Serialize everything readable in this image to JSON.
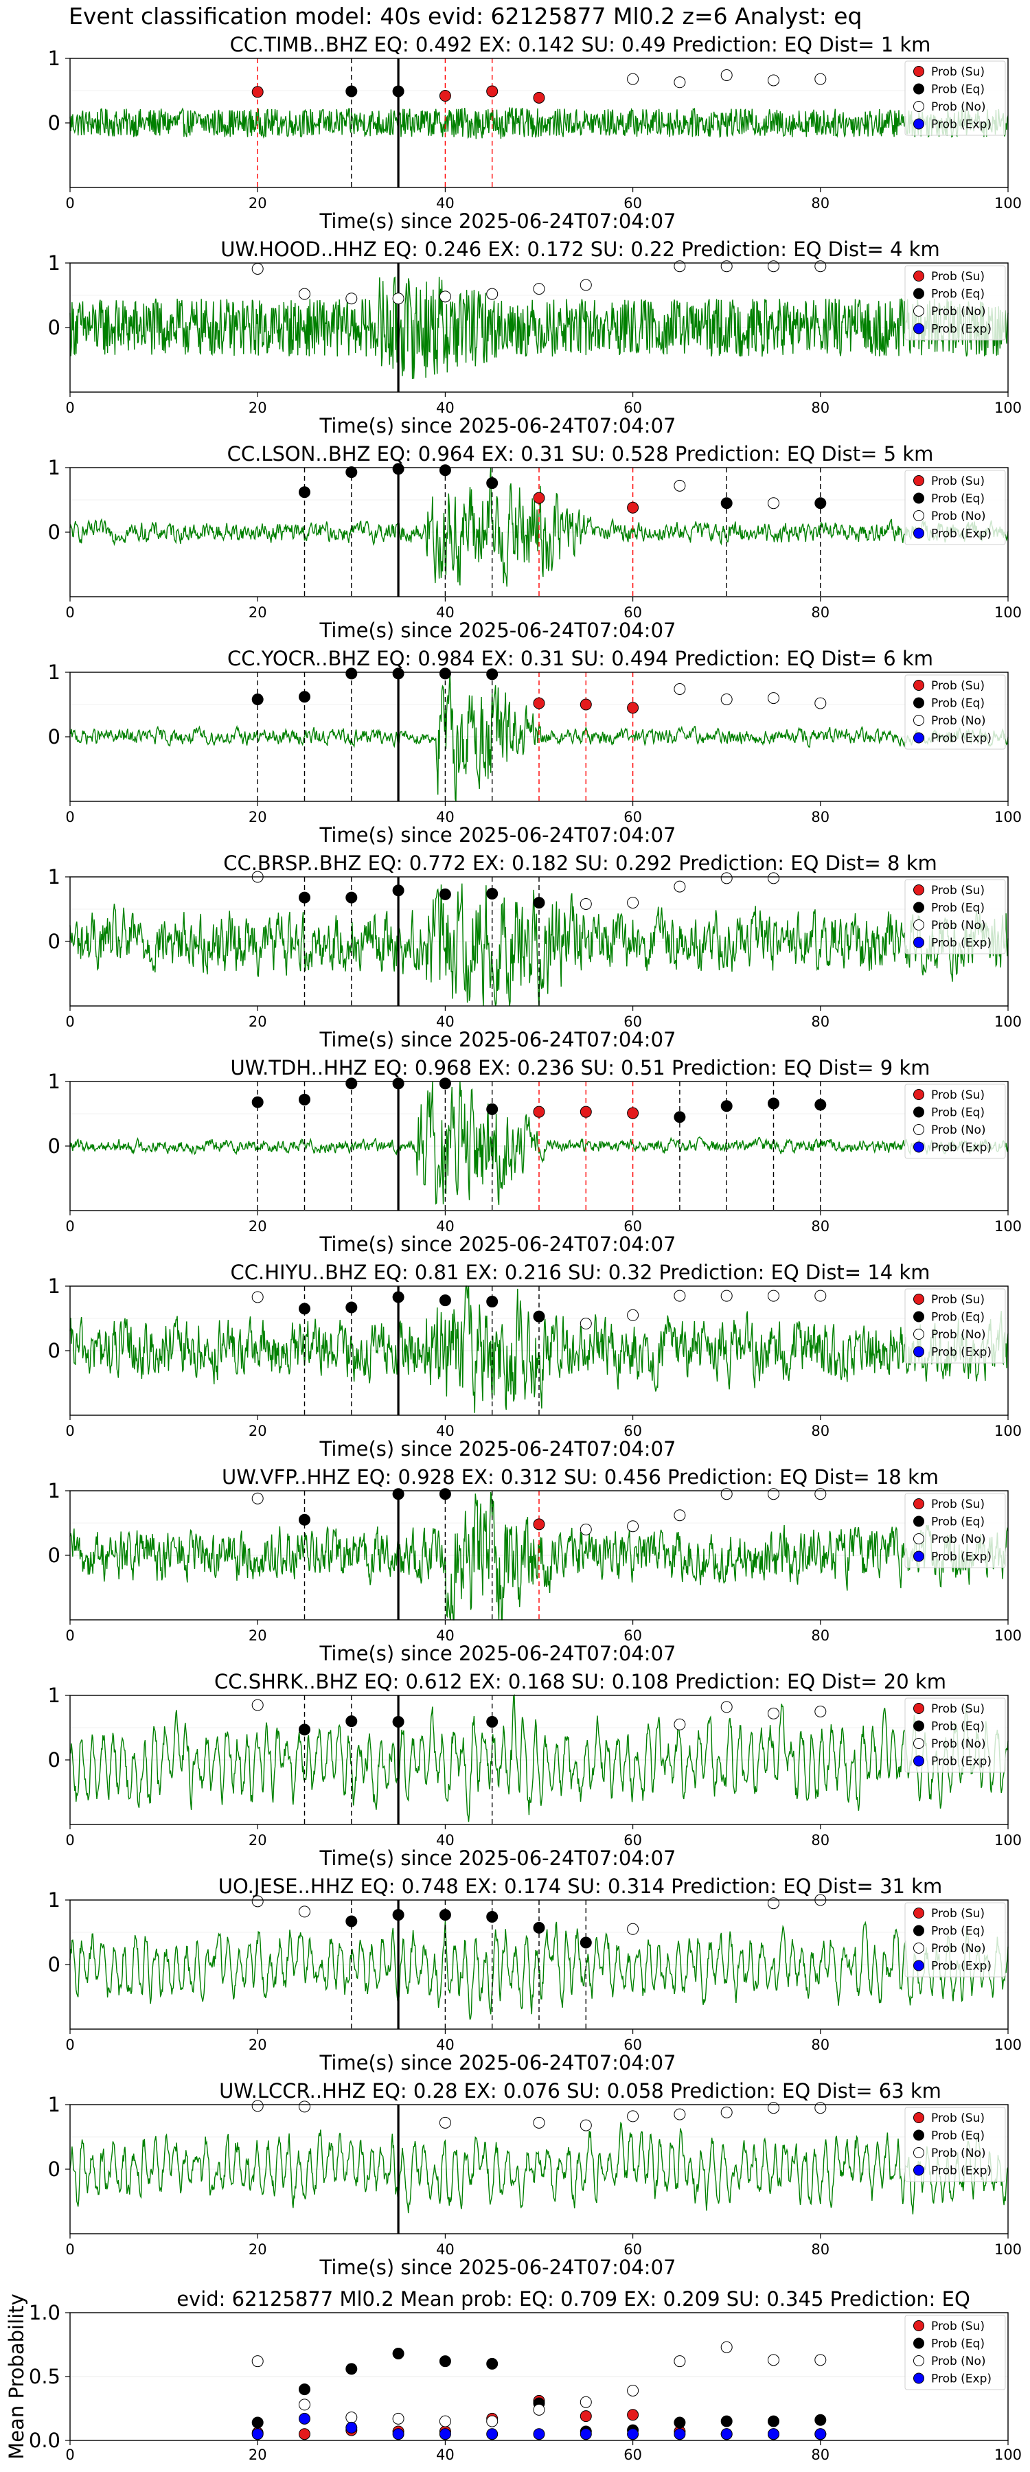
{
  "figure_title": "Event classification model: 40s evid: 62125877 Ml0.2 z=6 Analyst: eq",
  "legend_labels": [
    "Prob (Su)",
    "Prob (Eq)",
    "Prob (No)",
    "Prob (Exp)"
  ],
  "colors": {
    "waveform": "#008000",
    "su": "#e41a1c",
    "eq": "#000000",
    "no": "#ffffff",
    "exp": "#0000ff",
    "su_line": "#ff0000",
    "eq_line": "#000000"
  },
  "chart_data": [
    {
      "type": "line",
      "title": "CC.TIMB..BHZ   EQ: 0.492  EX: 0.142  SU: 0.49   Prediction: EQ    Dist= 1 km",
      "xlabel": "Time(s) since 2025-06-24T07:04:07",
      "xlim": [
        0,
        100
      ],
      "xticks": [
        0,
        20,
        40,
        60,
        80,
        100
      ],
      "yticks": [
        0,
        1
      ],
      "ylim": [
        -1,
        1
      ],
      "origin_line_x": 35,
      "series": [
        {
          "name": "Prob (Su)",
          "x": [
            20,
            40,
            45,
            50
          ],
          "y": [
            0.48,
            0.42,
            0.49,
            0.39
          ]
        },
        {
          "name": "Prob (Eq)",
          "x": [
            30,
            35
          ],
          "y": [
            0.49,
            0.49
          ]
        },
        {
          "name": "Prob (No)",
          "x": [
            60,
            65,
            70,
            75,
            80
          ],
          "y": [
            0.68,
            0.63,
            0.74,
            0.66,
            0.68
          ]
        },
        {
          "name": "Prob (Exp)",
          "x": [],
          "y": []
        }
      ],
      "vlines_su": [
        20,
        40,
        45
      ],
      "vlines_eq": [
        30
      ],
      "waveform_amp": 0.22,
      "waveform_style": "noise",
      "burst": [
        40,
        45,
        0.25
      ]
    },
    {
      "type": "line",
      "title": "UW.HOOD..HHZ   EQ: 0.246  EX: 0.172  SU: 0.22   Prediction: EQ    Dist= 4 km",
      "xlabel": "Time(s) since 2025-06-24T07:04:07",
      "xlim": [
        0,
        100
      ],
      "xticks": [
        0,
        20,
        40,
        60,
        80,
        100
      ],
      "yticks": [
        0,
        1
      ],
      "ylim": [
        -1,
        1
      ],
      "origin_line_x": 35,
      "series": [
        {
          "name": "Prob (Su)",
          "x": [],
          "y": []
        },
        {
          "name": "Prob (Eq)",
          "x": [],
          "y": []
        },
        {
          "name": "Prob (No)",
          "x": [
            20,
            25,
            30,
            35,
            40,
            45,
            50,
            55,
            65,
            70,
            75,
            80
          ],
          "y": [
            0.91,
            0.52,
            0.45,
            0.45,
            0.48,
            0.52,
            0.6,
            0.66,
            0.95,
            0.95,
            0.95,
            0.95
          ]
        },
        {
          "name": "Prob (Exp)",
          "x": [],
          "y": []
        }
      ],
      "vlines_su": [],
      "vlines_eq": [],
      "waveform_amp": 0.45,
      "waveform_style": "noise",
      "burst": [
        33,
        40,
        0.8
      ]
    },
    {
      "type": "line",
      "title": "CC.LSON..BHZ   EQ: 0.964  EX: 0.31  SU: 0.528   Prediction: EQ    Dist= 5 km",
      "xlabel": "Time(s) since 2025-06-24T07:04:07",
      "xlim": [
        0,
        100
      ],
      "xticks": [
        0,
        20,
        40,
        60,
        80,
        100
      ],
      "yticks": [
        0,
        1
      ],
      "ylim": [
        -1,
        1
      ],
      "origin_line_x": 35,
      "series": [
        {
          "name": "Prob (Su)",
          "x": [
            50,
            60
          ],
          "y": [
            0.53,
            0.38
          ]
        },
        {
          "name": "Prob (Eq)",
          "x": [
            25,
            30,
            35,
            40,
            45,
            70,
            80
          ],
          "y": [
            0.62,
            0.93,
            0.98,
            0.96,
            0.76,
            0.45,
            0.45
          ]
        },
        {
          "name": "Prob (No)",
          "x": [
            65,
            75
          ],
          "y": [
            0.72,
            0.45
          ]
        },
        {
          "name": "Prob (Exp)",
          "x": [],
          "y": []
        }
      ],
      "vlines_su": [
        50,
        60
      ],
      "vlines_eq": [
        25,
        30,
        40,
        45,
        70,
        80
      ],
      "waveform_amp": 0.15,
      "waveform_style": "smooth",
      "burst": [
        38,
        50,
        0.8
      ]
    },
    {
      "type": "line",
      "title": "CC.YOCR..BHZ   EQ: 0.984  EX: 0.31  SU: 0.494   Prediction: EQ    Dist= 6 km",
      "xlabel": "Time(s) since 2025-06-24T07:04:07",
      "xlim": [
        0,
        100
      ],
      "xticks": [
        0,
        20,
        40,
        60,
        80,
        100
      ],
      "yticks": [
        0,
        1
      ],
      "ylim": [
        -1,
        1
      ],
      "origin_line_x": 35,
      "series": [
        {
          "name": "Prob (Su)",
          "x": [
            50,
            55,
            60
          ],
          "y": [
            0.52,
            0.5,
            0.45
          ]
        },
        {
          "name": "Prob (Eq)",
          "x": [
            20,
            25,
            30,
            35,
            40,
            45
          ],
          "y": [
            0.58,
            0.62,
            0.98,
            0.98,
            0.98,
            0.97
          ]
        },
        {
          "name": "Prob (No)",
          "x": [
            65,
            70,
            75,
            80
          ],
          "y": [
            0.74,
            0.58,
            0.6,
            0.52
          ]
        },
        {
          "name": "Prob (Exp)",
          "x": [],
          "y": []
        }
      ],
      "vlines_su": [
        50,
        55,
        60
      ],
      "vlines_eq": [
        20,
        25,
        30,
        40,
        45
      ],
      "waveform_amp": 0.12,
      "waveform_style": "smooth",
      "burst": [
        39,
        45,
        0.85
      ]
    },
    {
      "type": "line",
      "title": "CC.BRSP..BHZ   EQ: 0.772  EX: 0.182  SU: 0.292   Prediction: EQ    Dist= 8 km",
      "xlabel": "Time(s) since 2025-06-24T07:04:07",
      "xlim": [
        0,
        100
      ],
      "xticks": [
        0,
        20,
        40,
        60,
        80,
        100
      ],
      "yticks": [
        0,
        1
      ],
      "ylim": [
        -1,
        1
      ],
      "origin_line_x": 35,
      "series": [
        {
          "name": "Prob (Su)",
          "x": [],
          "y": []
        },
        {
          "name": "Prob (Eq)",
          "x": [
            25,
            30,
            35,
            40,
            45,
            50
          ],
          "y": [
            0.68,
            0.68,
            0.79,
            0.73,
            0.74,
            0.6
          ]
        },
        {
          "name": "Prob (No)",
          "x": [
            20,
            55,
            60,
            65,
            70,
            75
          ],
          "y": [
            1.0,
            0.58,
            0.6,
            0.85,
            0.98,
            0.98
          ]
        },
        {
          "name": "Prob (Exp)",
          "x": [],
          "y": []
        }
      ],
      "vlines_su": [],
      "vlines_eq": [
        25,
        30,
        45,
        50
      ],
      "waveform_amp": 0.45,
      "waveform_style": "smooth",
      "burst": [
        38,
        50,
        0.9
      ]
    },
    {
      "type": "line",
      "title": "UW.TDH..HHZ   EQ: 0.968  EX: 0.236  SU: 0.51   Prediction: EQ    Dist= 9 km",
      "xlabel": "Time(s) since 2025-06-24T07:04:07",
      "xlim": [
        0,
        100
      ],
      "xticks": [
        0,
        20,
        40,
        60,
        80,
        100
      ],
      "yticks": [
        0,
        1
      ],
      "ylim": [
        -1,
        1
      ],
      "origin_line_x": 35,
      "series": [
        {
          "name": "Prob (Su)",
          "x": [
            50,
            55,
            60
          ],
          "y": [
            0.53,
            0.53,
            0.51
          ]
        },
        {
          "name": "Prob (Eq)",
          "x": [
            20,
            25,
            30,
            35,
            40,
            45,
            65,
            70,
            75,
            80
          ],
          "y": [
            0.68,
            0.72,
            0.97,
            0.97,
            0.97,
            0.57,
            0.45,
            0.62,
            0.66,
            0.64
          ]
        },
        {
          "name": "Prob (No)",
          "x": [],
          "y": []
        },
        {
          "name": "Prob (Exp)",
          "x": [],
          "y": []
        }
      ],
      "vlines_su": [
        50,
        55,
        60
      ],
      "vlines_eq": [
        20,
        25,
        30,
        40,
        45,
        65,
        70,
        75,
        80
      ],
      "waveform_amp": 0.1,
      "waveform_style": "smooth",
      "burst": [
        37,
        45,
        0.9
      ]
    },
    {
      "type": "line",
      "title": "CC.HIYU..BHZ   EQ: 0.81  EX: 0.216  SU: 0.32   Prediction: EQ    Dist= 14 km",
      "xlabel": "Time(s) since 2025-06-24T07:04:07",
      "xlim": [
        0,
        100
      ],
      "xticks": [
        0,
        20,
        40,
        60,
        80,
        100
      ],
      "yticks": [
        0,
        1
      ],
      "ylim": [
        -1,
        1
      ],
      "origin_line_x": 35,
      "series": [
        {
          "name": "Prob (Su)",
          "x": [],
          "y": []
        },
        {
          "name": "Prob (Eq)",
          "x": [
            25,
            30,
            35,
            40,
            45,
            50
          ],
          "y": [
            0.65,
            0.67,
            0.83,
            0.78,
            0.76,
            0.53
          ]
        },
        {
          "name": "Prob (No)",
          "x": [
            20,
            55,
            60,
            65,
            70,
            75,
            80
          ],
          "y": [
            0.83,
            0.42,
            0.55,
            0.85,
            0.85,
            0.85,
            0.85
          ]
        },
        {
          "name": "Prob (Exp)",
          "x": [],
          "y": []
        }
      ],
      "vlines_su": [],
      "vlines_eq": [
        25,
        30,
        45,
        50
      ],
      "waveform_amp": 0.45,
      "waveform_style": "smooth",
      "burst": [
        38,
        48,
        0.85
      ]
    },
    {
      "type": "line",
      "title": "UW.VFP..HHZ   EQ: 0.928  EX: 0.312  SU: 0.456   Prediction: EQ    Dist= 18 km",
      "xlabel": "Time(s) since 2025-06-24T07:04:07",
      "xlim": [
        0,
        100
      ],
      "xticks": [
        0,
        20,
        40,
        60,
        80,
        100
      ],
      "yticks": [
        0,
        1
      ],
      "ylim": [
        -1,
        1
      ],
      "origin_line_x": 35,
      "series": [
        {
          "name": "Prob (Su)",
          "x": [
            50
          ],
          "y": [
            0.48
          ]
        },
        {
          "name": "Prob (Eq)",
          "x": [
            25,
            35,
            40
          ],
          "y": [
            0.55,
            0.95,
            0.95
          ]
        },
        {
          "name": "Prob (No)",
          "x": [
            20,
            55,
            60,
            65,
            70,
            75,
            80
          ],
          "y": [
            0.88,
            0.4,
            0.45,
            0.62,
            0.95,
            0.95,
            0.95
          ]
        },
        {
          "name": "Prob (Exp)",
          "x": [],
          "y": []
        }
      ],
      "vlines_su": [
        50
      ],
      "vlines_eq": [
        25,
        40,
        45
      ],
      "waveform_amp": 0.4,
      "waveform_style": "smooth",
      "burst": [
        40,
        46,
        1.0
      ]
    },
    {
      "type": "line",
      "title": "CC.SHRK..BHZ   EQ: 0.612  EX: 0.168  SU: 0.108   Prediction: EQ    Dist= 20 km",
      "xlabel": "Time(s) since 2025-06-24T07:04:07",
      "xlim": [
        0,
        100
      ],
      "xticks": [
        0,
        20,
        40,
        60,
        80,
        100
      ],
      "yticks": [
        0,
        1
      ],
      "ylim": [
        -1,
        1
      ],
      "origin_line_x": 35,
      "series": [
        {
          "name": "Prob (Su)",
          "x": [],
          "y": []
        },
        {
          "name": "Prob (Eq)",
          "x": [
            25,
            30,
            35,
            45
          ],
          "y": [
            0.47,
            0.6,
            0.59,
            0.59
          ]
        },
        {
          "name": "Prob (No)",
          "x": [
            20,
            65,
            70,
            75,
            80
          ],
          "y": [
            0.85,
            0.55,
            0.82,
            0.72,
            0.75
          ]
        },
        {
          "name": "Prob (Exp)",
          "x": [],
          "y": []
        }
      ],
      "vlines_su": [],
      "vlines_eq": [
        25,
        30,
        45
      ],
      "waveform_amp": 0.6,
      "waveform_style": "swell",
      "burst": [
        40,
        48,
        0.7
      ]
    },
    {
      "type": "line",
      "title": "UO.JESE..HHZ   EQ: 0.748  EX: 0.174  SU: 0.314   Prediction: EQ    Dist= 31 km",
      "xlabel": "Time(s) since 2025-06-24T07:04:07",
      "xlim": [
        0,
        100
      ],
      "xticks": [
        0,
        20,
        40,
        60,
        80,
        100
      ],
      "yticks": [
        0,
        1
      ],
      "ylim": [
        -1,
        1
      ],
      "origin_line_x": 35,
      "series": [
        {
          "name": "Prob (Su)",
          "x": [],
          "y": []
        },
        {
          "name": "Prob (Eq)",
          "x": [
            30,
            35,
            40,
            45,
            50,
            55
          ],
          "y": [
            0.67,
            0.77,
            0.77,
            0.74,
            0.57,
            0.34
          ]
        },
        {
          "name": "Prob (No)",
          "x": [
            20,
            25,
            60,
            75,
            80
          ],
          "y": [
            0.98,
            0.82,
            0.55,
            0.95,
            1.0
          ]
        },
        {
          "name": "Prob (Exp)",
          "x": [],
          "y": []
        }
      ],
      "vlines_su": [],
      "vlines_eq": [
        30,
        40,
        45,
        50,
        55
      ],
      "waveform_amp": 0.5,
      "waveform_style": "swell",
      "burst": [
        40,
        50,
        0.6
      ]
    },
    {
      "type": "line",
      "title": "UW.LCCR..HHZ   EQ: 0.28  EX: 0.076  SU: 0.058   Prediction: EQ    Dist= 63 km",
      "xlabel": "Time(s) since 2025-06-24T07:04:07",
      "xlim": [
        0,
        100
      ],
      "xticks": [
        0,
        20,
        40,
        60,
        80,
        100
      ],
      "yticks": [
        0,
        1
      ],
      "ylim": [
        -1,
        1
      ],
      "origin_line_x": 35,
      "series": [
        {
          "name": "Prob (Su)",
          "x": [],
          "y": []
        },
        {
          "name": "Prob (Eq)",
          "x": [],
          "y": []
        },
        {
          "name": "Prob (No)",
          "x": [
            20,
            25,
            40,
            50,
            55,
            60,
            65,
            70,
            75,
            80
          ],
          "y": [
            0.98,
            0.97,
            0.72,
            0.72,
            0.68,
            0.82,
            0.85,
            0.88,
            0.95,
            0.95
          ]
        },
        {
          "name": "Prob (Exp)",
          "x": [],
          "y": []
        }
      ],
      "vlines_su": [],
      "vlines_eq": [],
      "waveform_amp": 0.5,
      "waveform_style": "swell",
      "burst": [
        38,
        45,
        0.5
      ]
    },
    {
      "type": "scatter",
      "title": "evid: 62125877  Ml0.2   Mean prob:   EQ: 0.709  EX: 0.209  SU: 0.345   Prediction: EQ",
      "xlabel": "",
      "ylabel": "Mean Probability",
      "xlim": [
        0,
        100
      ],
      "xticks": [
        0,
        20,
        40,
        60,
        80,
        100
      ],
      "ylim": [
        0,
        1.0
      ],
      "yticks": [
        0.0,
        0.5,
        1.0
      ],
      "series": [
        {
          "name": "Prob (Su)",
          "x": [
            20,
            25,
            30,
            35,
            40,
            45,
            50,
            55,
            60,
            65,
            70,
            75,
            80
          ],
          "y": [
            0.06,
            0.05,
            0.08,
            0.07,
            0.07,
            0.17,
            0.31,
            0.19,
            0.2,
            0.07,
            0.05,
            0.05,
            0.05
          ]
        },
        {
          "name": "Prob (Eq)",
          "x": [
            20,
            25,
            30,
            35,
            40,
            45,
            50,
            55,
            60,
            65,
            70,
            75,
            80
          ],
          "y": [
            0.14,
            0.4,
            0.56,
            0.68,
            0.62,
            0.6,
            0.29,
            0.07,
            0.08,
            0.14,
            0.15,
            0.15,
            0.16
          ]
        },
        {
          "name": "Prob (No)",
          "x": [
            20,
            25,
            30,
            35,
            40,
            45,
            50,
            55,
            60,
            65,
            70,
            75,
            80
          ],
          "y": [
            0.62,
            0.28,
            0.18,
            0.17,
            0.15,
            0.15,
            0.24,
            0.3,
            0.39,
            0.62,
            0.73,
            0.63,
            0.63
          ]
        },
        {
          "name": "Prob (Exp)",
          "x": [
            20,
            25,
            30,
            35,
            40,
            45,
            50,
            55,
            60,
            65,
            70,
            75,
            80
          ],
          "y": [
            0.05,
            0.17,
            0.1,
            0.05,
            0.05,
            0.05,
            0.05,
            0.05,
            0.05,
            0.05,
            0.05,
            0.05,
            0.05
          ]
        }
      ]
    }
  ]
}
